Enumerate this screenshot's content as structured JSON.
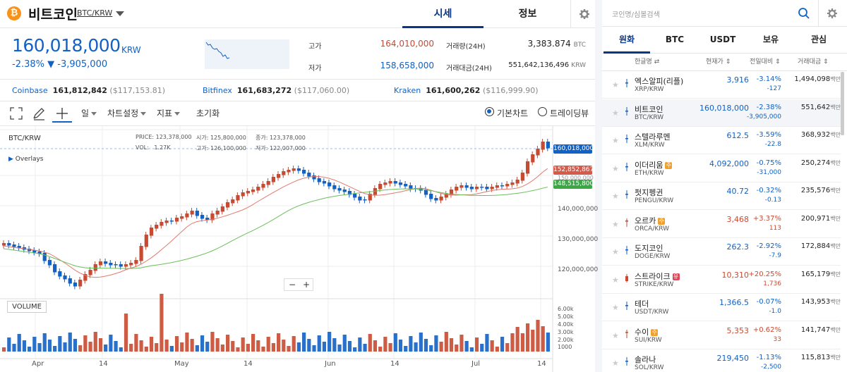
{
  "header": {
    "coin_symbol": "₿",
    "coin_name": "비트코인",
    "coin_pair": "BTC/KRW",
    "tabs": [
      {
        "label": "시세"
      },
      {
        "label": "정보"
      }
    ]
  },
  "price": {
    "current": "160,018,000",
    "unit": "KRW",
    "change_pct": "-2.38%",
    "change_amount": "▼ -3,905,000",
    "high_label": "고가",
    "high_value": "164,010,000",
    "low_label": "저가",
    "low_value": "158,658,000",
    "volume_label": "거래량(24H)",
    "volume_value": "3,383.874",
    "volume_unit": "BTC",
    "amount_label": "거래대금(24H)",
    "amount_value": "551,642,136,496",
    "amount_unit": "KRW"
  },
  "exchanges": [
    {
      "name": "Coinbase",
      "value": "161,812,842",
      "usd": "($117,153.81)"
    },
    {
      "name": "Bitfinex",
      "value": "161,683,272",
      "usd": "($117,060.00)"
    },
    {
      "name": "Kraken",
      "value": "161,600,262",
      "usd": "($116,999.90)"
    }
  ],
  "toolbar": {
    "interval": "일",
    "chart_settings": "차트설정",
    "indicators": "지표",
    "reset": "초기화",
    "basic_chart": "기본차트",
    "tradingview": "트레이딩뷰"
  },
  "chart": {
    "symbol": "BTC/KRW",
    "overlays": "Overlays",
    "ohlc": {
      "price_label": "PRICE:",
      "price": "123,378,000",
      "open_label": "시가:",
      "open": "125,800,000",
      "close_label": "종가:",
      "close": "123,378,000",
      "vol_label": "VOL:",
      "vol": "1.27K",
      "high_label": "고가:",
      "high": "126,100,000",
      "low_label": "저가:",
      "low": "122,007,000"
    },
    "tags": {
      "last": "160,018,000",
      "ma1": "152,852,867",
      "ma2": "148,515,800",
      "hidden": "150,000,000"
    },
    "y_axis": [
      "140,000,000",
      "130,000,000",
      "120,000,000"
    ],
    "vol_axis": [
      "6.00k",
      "5.00k",
      "4.00k",
      "3.00k",
      "2.00k",
      "1000"
    ],
    "x_axis": [
      "Apr",
      "14",
      "May",
      "14",
      "Jun",
      "14",
      "Jul",
      "14"
    ],
    "volume_label": "VOLUME",
    "zoom_out": "−",
    "zoom_in": "+",
    "colors": {
      "up": "#c84a31",
      "down": "#1261c4",
      "ma_short": "#e37a6c",
      "ma_long": "#6bbf5a"
    }
  },
  "chart_data": {
    "type": "candlestick",
    "series": [
      {
        "name": "BTC/KRW"
      }
    ],
    "candles_approx_count": 108,
    "price_range": [
      115000000,
      166000000
    ]
  },
  "right": {
    "search_placeholder": "코인명/심볼검색",
    "tabs": [
      {
        "label": "원화"
      },
      {
        "label": "BTC"
      },
      {
        "label": "USDT"
      },
      {
        "label": "보유"
      },
      {
        "label": "관심"
      }
    ],
    "columns": {
      "name": "한글명 ⇄",
      "price": "현재가 ⇕",
      "change": "전일대비 ⇕",
      "volume": "거래대금 ⇕"
    },
    "volume_unit": "백만",
    "coins": [
      {
        "name": "엑스알피(리플)",
        "pair": "XRP/KRW",
        "price": "3,916",
        "pct": "-3.14%",
        "chg": "-127",
        "vol": "1,494,098",
        "dir": "dn",
        "warn": ""
      },
      {
        "name": "비트코인",
        "pair": "BTC/KRW",
        "price": "160,018,000",
        "pct": "-2.38%",
        "chg": "-3,905,000",
        "vol": "551,642",
        "dir": "dn",
        "warn": "",
        "sel": true
      },
      {
        "name": "스텔라루멘",
        "pair": "XLM/KRW",
        "price": "612.5",
        "pct": "-3.59%",
        "chg": "-22.8",
        "vol": "368,932",
        "dir": "dn",
        "warn": ""
      },
      {
        "name": "이더리움",
        "pair": "ETH/KRW",
        "price": "4,092,000",
        "pct": "-0.75%",
        "chg": "-31,000",
        "vol": "250,274",
        "dir": "dn",
        "warn": "주"
      },
      {
        "name": "펏지펭귄",
        "pair": "PENGU/KRW",
        "price": "40.72",
        "pct": "-0.32%",
        "chg": "-0.13",
        "vol": "235,576",
        "dir": "dn",
        "warn": ""
      },
      {
        "name": "오르카",
        "pair": "ORCA/KRW",
        "price": "3,468",
        "pct": "+3.37%",
        "chg": "113",
        "vol": "200,971",
        "dir": "up",
        "warn": "주"
      },
      {
        "name": "도지코인",
        "pair": "DOGE/KRW",
        "price": "262.3",
        "pct": "-2.92%",
        "chg": "-7.9",
        "vol": "172,884",
        "dir": "dn",
        "warn": ""
      },
      {
        "name": "스트라이크",
        "pair": "STRIKE/KRW",
        "price": "10,310",
        "pct": "+20.25%",
        "chg": "1,736",
        "vol": "165,179",
        "dir": "up",
        "warn": "유"
      },
      {
        "name": "테더",
        "pair": "USDT/KRW",
        "price": "1,366.5",
        "pct": "-0.07%",
        "chg": "-1.0",
        "vol": "143,953",
        "dir": "dn",
        "warn": ""
      },
      {
        "name": "수이",
        "pair": "SUI/KRW",
        "price": "5,353",
        "pct": "+0.62%",
        "chg": "33",
        "vol": "141,747",
        "dir": "up",
        "warn": "주"
      },
      {
        "name": "솔라나",
        "pair": "SOL/KRW",
        "price": "219,450",
        "pct": "-1.13%",
        "chg": "-2,500",
        "vol": "115,813",
        "dir": "dn",
        "warn": ""
      }
    ]
  }
}
